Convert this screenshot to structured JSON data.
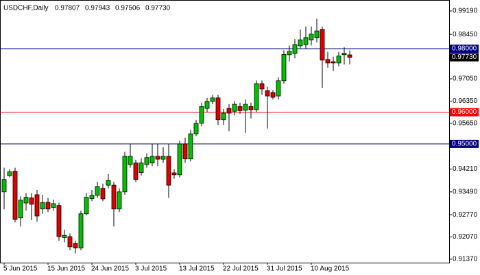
{
  "chart_data": {
    "type": "candlestick",
    "title": "USDCHF,Daily",
    "header_values": [
      0.97807,
      0.97943,
      0.97506,
      {
        "value": 0.9773,
        "label": "0.97730"
      }
    ],
    "categories": [
      "5 Jun 2015",
      null,
      null,
      null,
      null,
      null,
      null,
      null,
      "15 Jun 2015",
      null,
      null,
      null,
      null,
      null,
      null,
      null,
      "24 Jun 2015",
      null,
      null,
      null,
      null,
      null,
      null,
      null,
      "3 Jul 2015",
      null,
      null,
      null,
      null,
      null,
      null,
      null,
      "13 Jul 2015",
      null,
      null,
      null,
      null,
      null,
      null,
      null,
      "22 Jul 2015",
      null,
      null,
      null,
      null,
      null,
      null,
      null,
      "31 Jul 2015",
      null,
      null,
      null,
      null,
      null,
      null,
      null,
      "10 Aug 2015",
      null,
      null,
      null,
      null,
      null,
      null,
      null
    ],
    "open": [
      0.9349,
      0.94,
      0.9414,
      0.9267,
      0.9314,
      0.933,
      0.934,
      0.9295,
      0.9316,
      0.93,
      0.9306,
      0.9205,
      0.9208,
      0.9187,
      0.9172,
      0.928,
      0.9328,
      0.9338,
      0.936,
      0.937,
      0.937,
      0.9295,
      0.9349,
      0.9435,
      0.944,
      0.941,
      0.9435,
      0.944,
      0.9461,
      0.9452,
      0.9461,
      0.9409,
      0.9403,
      0.95,
      0.9453,
      0.9532,
      0.9565,
      0.9612,
      0.9634,
      0.9645,
      0.9576,
      0.9612,
      0.9603,
      0.9618,
      0.9606,
      0.9618,
      0.9608,
      0.969,
      0.9668,
      0.9662,
      0.9651,
      0.9699,
      0.9781,
      0.9785,
      0.9809,
      0.9813,
      0.9828,
      0.9835,
      0.9861,
      0.9766,
      0.9759,
      0.9755,
      0.9781,
      0.97807
    ],
    "high": [
      0.9425,
      0.942,
      0.9425,
      0.9335,
      0.9345,
      0.9345,
      0.9355,
      0.934,
      0.933,
      0.9325,
      0.9315,
      0.923,
      0.9218,
      0.9195,
      0.929,
      0.9345,
      0.9355,
      0.938,
      0.9375,
      0.9405,
      0.938,
      0.936,
      0.9475,
      0.95,
      0.945,
      0.9455,
      0.947,
      0.95,
      0.95,
      0.949,
      0.95,
      0.942,
      0.951,
      0.952,
      0.9545,
      0.9575,
      0.963,
      0.9645,
      0.9655,
      0.9655,
      0.961,
      0.9625,
      0.9635,
      0.963,
      0.964,
      0.963,
      0.97,
      0.97,
      0.968,
      0.967,
      0.971,
      0.9795,
      0.981,
      0.983,
      0.986,
      0.987,
      0.987,
      0.9895,
      0.987,
      0.979,
      0.9775,
      0.979,
      0.9805,
      0.97943
    ],
    "low": [
      0.9294,
      0.9395,
      0.9253,
      0.924,
      0.929,
      0.926,
      0.9255,
      0.928,
      0.9285,
      0.929,
      0.9195,
      0.919,
      0.9165,
      0.9155,
      0.9165,
      0.9275,
      0.932,
      0.933,
      0.932,
      0.936,
      0.924,
      0.9285,
      0.934,
      0.9425,
      0.938,
      0.94,
      0.9425,
      0.943,
      0.943,
      0.944,
      0.933,
      0.939,
      0.9395,
      0.944,
      0.9445,
      0.9525,
      0.9555,
      0.96,
      0.9625,
      0.956,
      0.956,
      0.954,
      0.959,
      0.9595,
      0.9535,
      0.958,
      0.96,
      0.9655,
      0.9548,
      0.964,
      0.964,
      0.969,
      0.976,
      0.977,
      0.98,
      0.98,
      0.981,
      0.982,
      0.9677,
      0.974,
      0.973,
      0.9745,
      0.975,
      0.97506
    ],
    "close": [
      0.9388,
      0.9412,
      0.9262,
      0.9323,
      0.9332,
      0.931,
      0.9273,
      0.9315,
      0.9295,
      0.9312,
      0.9208,
      0.9212,
      0.9176,
      0.9172,
      0.928,
      0.9332,
      0.9338,
      0.9366,
      0.9327,
      0.9385,
      0.9295,
      0.9349,
      0.9461,
      0.9461,
      0.9388,
      0.944,
      0.9457,
      0.9461,
      0.9452,
      0.9461,
      0.937,
      0.9403,
      0.95,
      0.9453,
      0.9532,
      0.9565,
      0.9618,
      0.9634,
      0.9645,
      0.9576,
      0.9597,
      0.9597,
      0.9625,
      0.9605,
      0.9625,
      0.9608,
      0.969,
      0.9673,
      0.9651,
      0.9647,
      0.9699,
      0.9782,
      0.9792,
      0.9813,
      0.9828,
      0.9835,
      0.9846,
      0.9856,
      0.9764,
      0.9755,
      0.9755,
      0.9777,
      0.9786,
      0.9773
    ],
    "up_color": "#00c000",
    "down_color": "#e00000",
    "ylim": [
      0.9126,
      0.9947
    ],
    "yticks": [
      {
        "value": 0.9919,
        "label": "0.99190"
      },
      {
        "value": 0.9845,
        "label": "0.98450"
      },
      {
        "value": 0.9705,
        "label": "0.97050"
      },
      {
        "value": 0.9635,
        "label": "0.96350"
      },
      {
        "value": 0.9565,
        "label": "0.95650"
      },
      {
        "value": 0.9421,
        "label": "0.94210"
      },
      {
        "value": 0.9349,
        "label": "0.93490"
      },
      {
        "value": 0.9277,
        "label": "0.92770"
      },
      {
        "value": 0.9207,
        "label": "0.92070"
      },
      {
        "value": 0.9137,
        "label": "0.91370"
      }
    ],
    "levels": [
      {
        "value": 0.98,
        "label": "0.98000",
        "color": "#000080"
      },
      {
        "value": 0.96,
        "label": "0.96000",
        "color": "#ff0000"
      },
      {
        "value": 0.95,
        "label": "0.95000",
        "color": "#000080"
      }
    ],
    "last_price": {
      "value": 0.9773,
      "label": "0.97730",
      "color": "#000000"
    }
  }
}
